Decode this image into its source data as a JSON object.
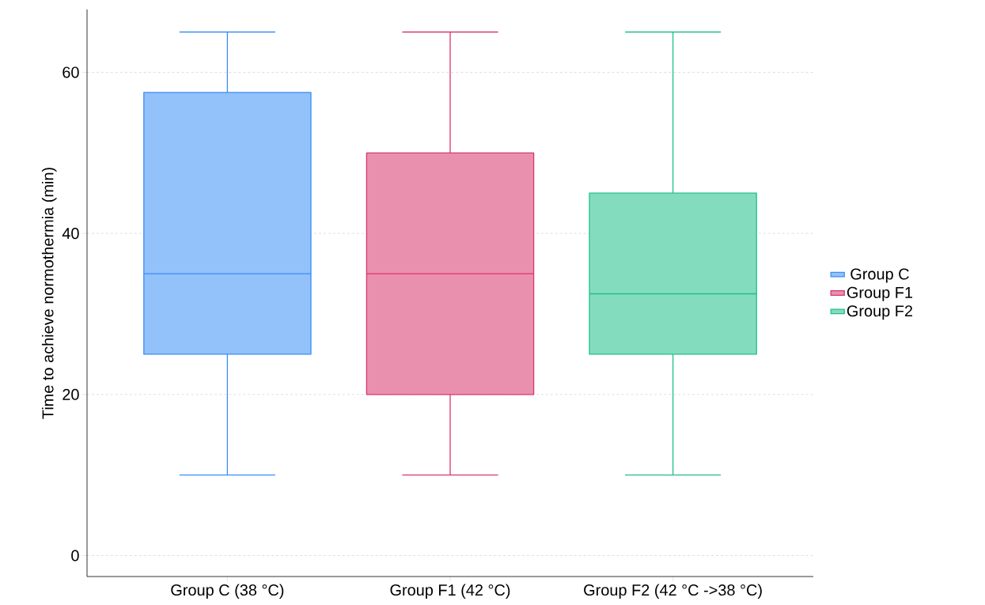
{
  "chart_data": {
    "type": "box",
    "ylabel": "Time to achieve normothermia (min)",
    "categories": [
      "Group C (38 °C)",
      "Group F1 (42 °C)",
      "Group F2 (42 °C ->38 °C)"
    ],
    "series": [
      {
        "name": "Group C",
        "color": "#3a8ef5",
        "boxes": [
          {
            "low": 10,
            "q1": 25,
            "median": 35,
            "q3": 57.5,
            "high": 65
          },
          null,
          null
        ]
      },
      {
        "name": "Group F1",
        "color": "#d8356e",
        "boxes": [
          null,
          {
            "low": 10,
            "q1": 20,
            "median": 35,
            "q3": 50,
            "high": 65
          },
          null
        ]
      },
      {
        "name": "Group F2",
        "color": "#1fc08b",
        "boxes": [
          null,
          null,
          {
            "low": 10,
            "q1": 25,
            "median": 32.5,
            "q3": 45,
            "high": 65
          }
        ]
      }
    ],
    "ylim": [
      -2.6,
      67.8
    ],
    "yticks": [
      0,
      20,
      40,
      60
    ],
    "grid": "y",
    "legend": "right"
  }
}
